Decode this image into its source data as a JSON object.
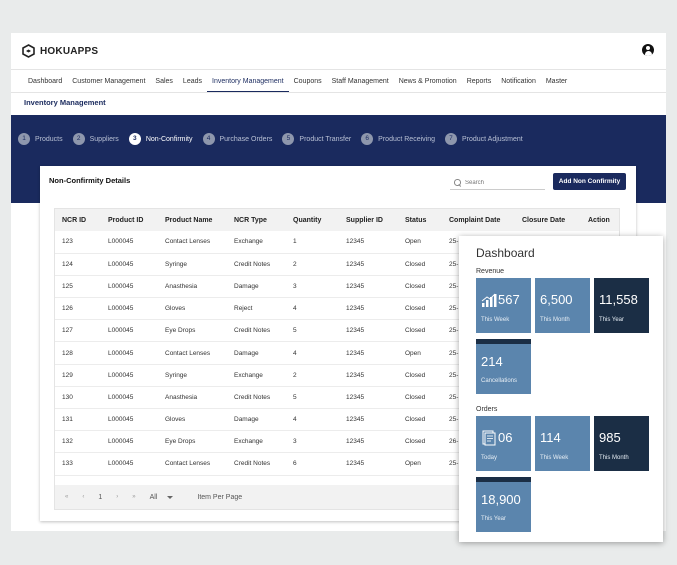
{
  "app": {
    "brand": "HOKUAPPS"
  },
  "nav": [
    "Dashboard",
    "Customer Management",
    "Sales",
    "Leads",
    "Inventory Management",
    "Coupons",
    "Staff Management",
    "News & Promotion",
    "Reports",
    "Notification",
    "Master"
  ],
  "nav_active": "Inventory Management",
  "page_title": "Inventory Management",
  "steps": [
    {
      "num": "1",
      "label": "Products"
    },
    {
      "num": "2",
      "label": "Suppliers"
    },
    {
      "num": "3",
      "label": "Non-Confirmity",
      "active": true
    },
    {
      "num": "4",
      "label": "Purchase Orders"
    },
    {
      "num": "5",
      "label": "Product Transfer"
    },
    {
      "num": "6",
      "label": "Product Receiving"
    },
    {
      "num": "7",
      "label": "Product Adjustment"
    }
  ],
  "card": {
    "title": "Non-Confirmity Details",
    "search_placeholder": "Search",
    "add_button": "Add Non Confirmity"
  },
  "table": {
    "columns": [
      "NCR ID",
      "Product ID",
      "Product Name",
      "NCR Type",
      "Quantity",
      "Supplier ID",
      "Status",
      "Complaint Date",
      "Closure  Date",
      "Action"
    ],
    "rows": [
      [
        "123",
        "L000045",
        "Contact Lenses",
        "Exchange",
        "1",
        "12345",
        "Open",
        "25-"
      ],
      [
        "124",
        "L000045",
        "Syringe",
        "Credit Notes",
        "2",
        "12345",
        "Closed",
        "25-"
      ],
      [
        "125",
        "L000045",
        "Anasthesia",
        "Damage",
        "3",
        "12345",
        "Closed",
        "25-"
      ],
      [
        "126",
        "L000045",
        "Gloves",
        "Reject",
        "4",
        "12345",
        "Closed",
        "25-"
      ],
      [
        "127",
        "L000045",
        "Eye Drops",
        "Credit Notes",
        "5",
        "12345",
        "Closed",
        "25-"
      ],
      [
        "128",
        "L000045",
        "Contact Lenses",
        "Damage",
        "4",
        "12345",
        "Open",
        "25-"
      ],
      [
        "129",
        "L000045",
        "Syringe",
        "Exchange",
        "2",
        "12345",
        "Closed",
        "25-"
      ],
      [
        "130",
        "L000045",
        "Anasthesia",
        "Credit Notes",
        "5",
        "12345",
        "Closed",
        "25-"
      ],
      [
        "131",
        "L000045",
        "Gloves",
        "Damage",
        "4",
        "12345",
        "Closed",
        "25-"
      ],
      [
        "132",
        "L000045",
        "Eye Drops",
        "Exchange",
        "3",
        "12345",
        "Closed",
        "26-"
      ],
      [
        "133",
        "L000045",
        "Contact Lenses",
        "Credit Notes",
        "6",
        "12345",
        "Open",
        "25-"
      ]
    ]
  },
  "pager": {
    "first": "«",
    "prev": "‹",
    "page": "1",
    "next": "›",
    "last": "»",
    "per_page_value": "All",
    "per_page_label": "Item Per Page"
  },
  "dashboard": {
    "title": "Dashboard",
    "revenue_label": "Revenue",
    "orders_label": "Orders",
    "revenue": [
      {
        "value": "567",
        "label": "This Week",
        "style": "blue",
        "icon": "bar-chart-icon"
      },
      {
        "value": "6,500",
        "label": "This Month",
        "style": "blue"
      },
      {
        "value": "11,558",
        "label": "This Year",
        "style": "dark"
      },
      {
        "value": "214",
        "label": "Cancellations",
        "style": "blue"
      }
    ],
    "orders": [
      {
        "value": "06",
        "label": "Today",
        "style": "blue",
        "icon": "document-icon"
      },
      {
        "value": "114",
        "label": "This Week",
        "style": "blue"
      },
      {
        "value": "985",
        "label": "This Month",
        "style": "dark"
      },
      {
        "value": "18,900",
        "label": "This Year",
        "style": "blue"
      }
    ]
  },
  "colors": {
    "navy": "#1a2a5e",
    "tile_blue": "#5b85ad",
    "tile_dark": "#1b2e45"
  }
}
